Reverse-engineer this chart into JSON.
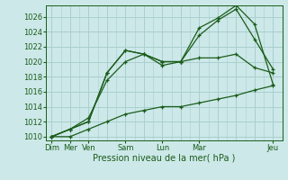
{
  "xlabel": "Pression niveau de la mer( hPa )",
  "bg_color": "#cce8e8",
  "grid_color": "#aacece",
  "line_color": "#1a5c1a",
  "ylim": [
    1009.5,
    1027.5
  ],
  "yticks": [
    1010,
    1012,
    1014,
    1016,
    1018,
    1020,
    1022,
    1024,
    1026
  ],
  "x_ticks_major": [
    0,
    1,
    2,
    4,
    6,
    8,
    12
  ],
  "x_tick_labels_major": [
    "Dim",
    "Mer",
    "Ven",
    "Sam",
    "Lun",
    "Mar",
    "Jeu"
  ],
  "xlim": [
    -0.3,
    12.5
  ],
  "series": [
    [
      1010,
      1010,
      1011,
      1012,
      1013,
      1013.5,
      1014,
      1014,
      1014.5,
      1015,
      1015.5,
      1016.2,
      1016.8
    ],
    [
      1010,
      1011,
      1012.5,
      1017.5,
      1020,
      1021,
      1020,
      1020,
      1020.5,
      1020.5,
      1021,
      1019.2,
      1018.5
    ],
    [
      1010,
      1011,
      1012,
      1018.5,
      1021.5,
      1021,
      1019.5,
      1020,
      1023.5,
      1025.5,
      1027,
      1023,
      1019
    ],
    [
      1010,
      1011,
      1012,
      1018.5,
      1021.5,
      1021,
      1020,
      1020,
      1024.5,
      1025.8,
      1027.5,
      1025,
      1017
    ]
  ]
}
